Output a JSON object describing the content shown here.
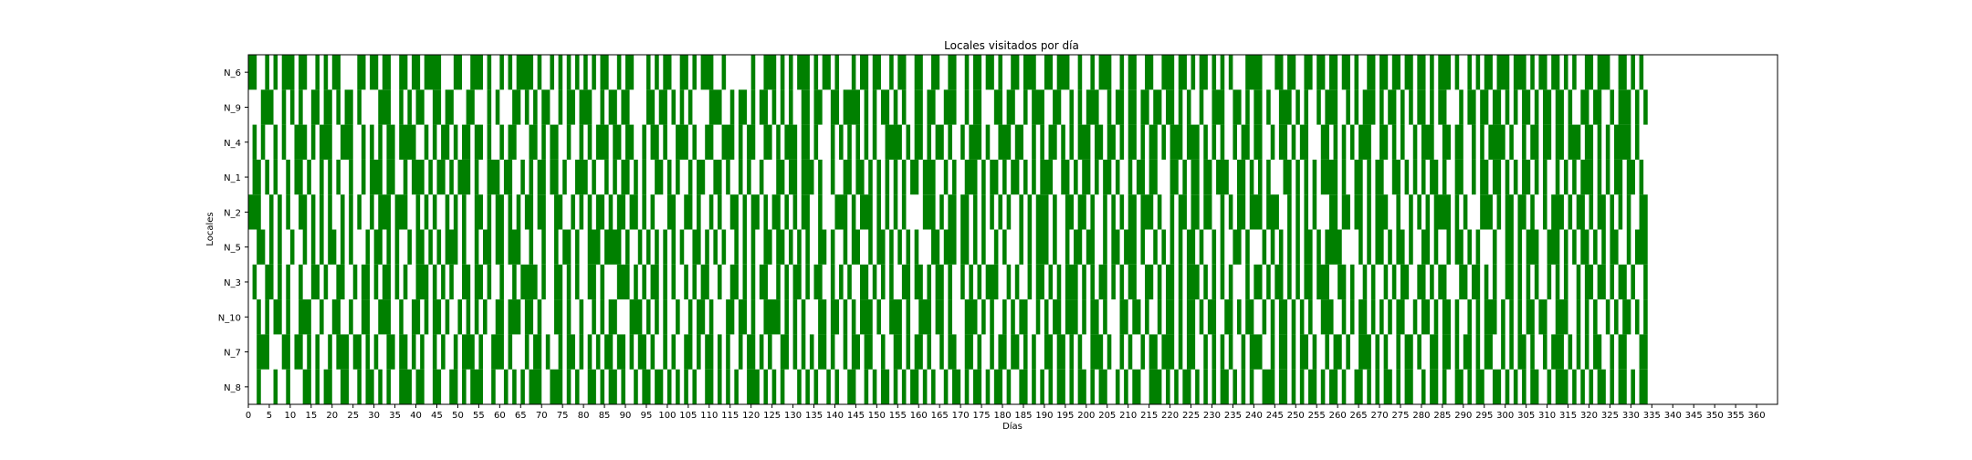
{
  "chart_data": {
    "type": "heatmap",
    "title": "Locales visitados por día",
    "xlabel": "Días",
    "ylabel": "Locales",
    "y_categories": [
      "N_6",
      "N_9",
      "N_4",
      "N_1",
      "N_2",
      "N_5",
      "N_3",
      "N_10",
      "N_7",
      "N_8"
    ],
    "xlim": [
      0,
      365
    ],
    "x_ticks": [
      0,
      5,
      10,
      15,
      20,
      25,
      30,
      35,
      40,
      45,
      50,
      55,
      60,
      65,
      70,
      75,
      80,
      85,
      90,
      95,
      100,
      105,
      110,
      115,
      120,
      125,
      130,
      135,
      140,
      145,
      150,
      155,
      160,
      165,
      170,
      175,
      180,
      185,
      190,
      195,
      200,
      205,
      210,
      215,
      220,
      225,
      230,
      235,
      240,
      245,
      250,
      255,
      260,
      265,
      270,
      275,
      280,
      285,
      290,
      295,
      300,
      305,
      310,
      315,
      320,
      325,
      330,
      335,
      340,
      345,
      350,
      355,
      360
    ],
    "visited_color": "#008000",
    "not_visited_color": "#ffffff",
    "grid": false,
    "visits": [
      "1100101011101100101011000011011011001101101111000110011101001010111101001010101010101100101100010101100110101110010000001001110101011101011010001011011001011001100110011001011011010011011100110111001001011100101100110011101101011010101000111100011011001101101101101001101101101101101011101001010110111011101011011010100110111001101010",
      "0001110010101001101101011010000111001010110011011000110001010001101010110010110111001011011000011011010101000011100101101011010101001101100110111101010110101001101100111001011000110110010111001100101011100101101101101101101010010011100110101101001110101001011100101011101011010101101011000101101101101010110101101101001101100101110101",
      "0101001010011101011100111001010101101111001010110101101101001011000110101100100101011101101100101101001110100110011101011001101011101101000101010101010011110101101011010010111010011101100101011010101110110110101101011010111011101010100101101100101101011000110101010111001101010010111001101100101011110100101101101101110110101011110100",
      "0110101001011010010101001001011101100101110101101011101001110110010101101101001110100101011010100110101001011001101001010010001101101110100100110110101010101011011100101001110101101011010101110011010110101101001011011000110101101101110011010101000110101010111101001101011001101010101101001100101101101010110101001010101110101011011010",
      "1110010101001101010100101010010111011100101010010101001101011010101101100110010101011010110110101000110011010010100110101101011010101100100011101011101010101000011101011011010101010100101011101001101101001010101101110100101101101100101011011101110010101010001101101101011100100101010111101010001110101101101001011101011010110101010011",
      "0011010100100101010110101000101101010010110101011101001011011011100100100101101001110111101001010101010100110101010010101001101101010100110100101100101101010101000110111011010100101000101011101001011011001011011101001010101011010010100110100010101010101101011110000101011010110100110100101101010001001101011100111010101101010110010111",
      "0100110101001001101001100101101011010100111010101001101101001001011110100110101001101000111010101101010010101100100110101011001010110101100101010011010101001101101011010010101011100101001011010101110101011010101100110101101011101010101000101101011010101101110011010010100101011001101011000110110101001101010100101010010110110101101001",
      "0010101101001110010011001001100111001001101011010010101010011011101101000110100100101011000111010101001001011010001101101001111010101000110110101011101001110100111011010001110101001010110010101101110101101000110110100101101011010110011010110010101101010100111001010110101010110010110101101001010111010101011011001110010101001010110101",
      "0011100011011010100101110110101001101101010010100101110100111010001011010010110101010110110101101001010011010110101001011010100110101010110100101101100100110101101001011001101001011011010100110110101001110100101001011011101011001010101001011100101101011010010110100111010100101101001101101011010110010101101001011101010101100101100011",
      "0010001001000110101100110010110101001110110011001101011100100101010111001110101001101011010010110110101010100110101010011101010100010101001010011001010110101011010100101101011010110100110101010110101101011001010110011101010110101010110101010011101101010110101101001101010110101100101101001101011001101010101100101110101010110101101011"
    ]
  }
}
